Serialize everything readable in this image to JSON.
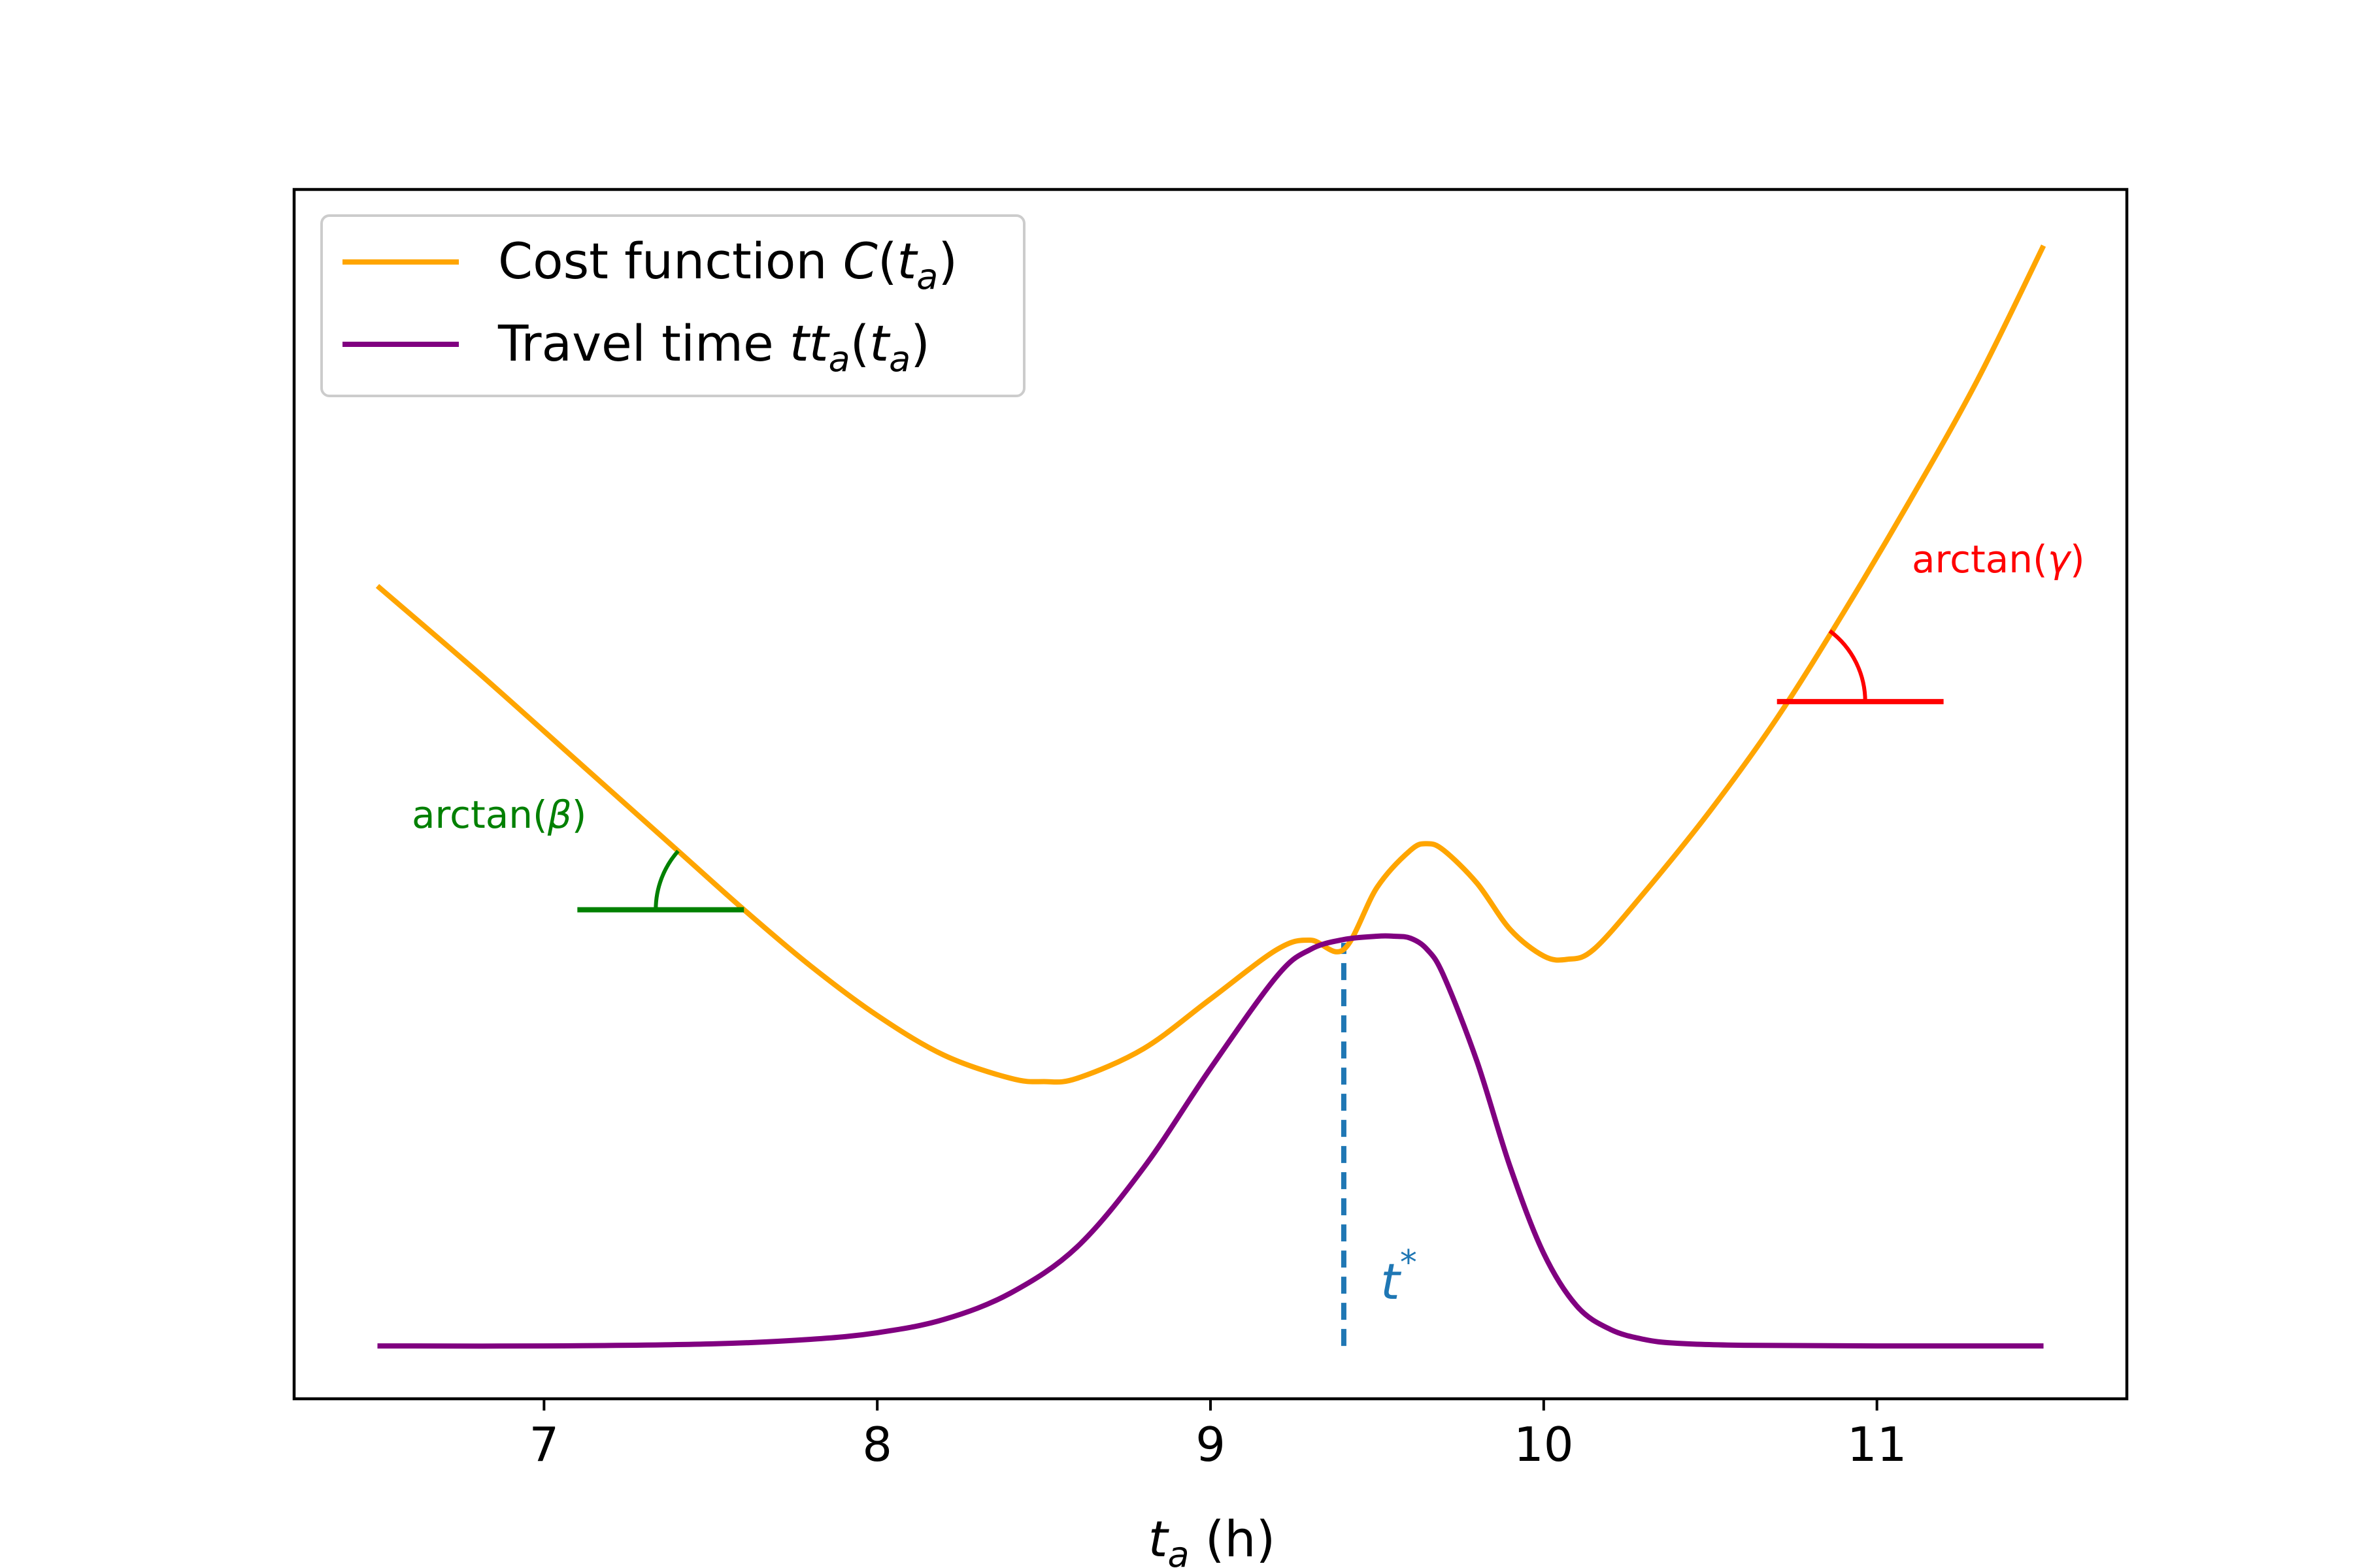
{
  "chart_data": {
    "type": "line",
    "title": "",
    "xlabel_main": "t",
    "xlabel_sub": "a",
    "xlabel_unit": " (h)",
    "ylabel": "",
    "xlim": [
      6.25,
      11.75
    ],
    "ylim": [
      -0.08,
      1.75
    ],
    "x_ticks": [
      7,
      8,
      9,
      10,
      11
    ],
    "x_tick_labels": [
      "7",
      "8",
      "9",
      "10",
      "11"
    ],
    "y_ticks": [],
    "grid": false,
    "legend_position": "top-left",
    "series": [
      {
        "name": "Cost function C(t_a)",
        "legend_text": "Cost function ",
        "legend_math": "C",
        "legend_sub": "a",
        "color": "#FFA500",
        "x": [
          6.5,
          6.8,
          7.1,
          7.4,
          7.6,
          7.8,
          8.0,
          8.2,
          8.4,
          8.5,
          8.6,
          8.8,
          9.0,
          9.2,
          9.3,
          9.4,
          9.5,
          9.6,
          9.65,
          9.7,
          9.8,
          9.9,
          10.0,
          10.07,
          10.15,
          10.3,
          10.5,
          10.7,
          10.9,
          11.1,
          11.3,
          11.5
        ],
        "values": [
          1.15,
          1.02,
          0.885,
          0.75,
          0.66,
          0.575,
          0.5,
          0.44,
          0.405,
          0.4,
          0.405,
          0.45,
          0.525,
          0.6,
          0.614,
          0.6,
          0.694,
          0.75,
          0.76,
          0.75,
          0.7,
          0.63,
          0.59,
          0.585,
          0.6,
          0.685,
          0.81,
          0.95,
          1.11,
          1.28,
          1.46,
          1.665
        ]
      },
      {
        "name": "Travel time tt_a(t_a)",
        "legend_text": "Travel time ",
        "legend_math": "tt",
        "legend_sub": "a",
        "color": "#800080",
        "x": [
          6.5,
          7.0,
          7.5,
          7.8,
          8.0,
          8.2,
          8.4,
          8.6,
          8.8,
          9.0,
          9.2,
          9.3,
          9.4,
          9.5,
          9.55,
          9.6,
          9.65,
          9.7,
          9.8,
          9.9,
          10.0,
          10.1,
          10.2,
          10.3,
          10.4,
          10.6,
          11.0,
          11.5
        ],
        "values": [
          0.0,
          0.0,
          0.003,
          0.01,
          0.02,
          0.04,
          0.08,
          0.15,
          0.27,
          0.42,
          0.56,
          0.6,
          0.615,
          0.62,
          0.62,
          0.617,
          0.6,
          0.56,
          0.43,
          0.27,
          0.14,
          0.06,
          0.025,
          0.01,
          0.004,
          0.001,
          0.0,
          0.0
        ]
      }
    ],
    "annotations": [
      {
        "name": "beta",
        "label_text": "arctan(",
        "label_greek": "β",
        "label_close": ")",
        "color": "#008000",
        "line_x": [
          7.1,
          7.6
        ],
        "line_y": 0.66
      },
      {
        "name": "gamma",
        "label_text": "arctan(",
        "label_greek": "γ",
        "label_close": ")",
        "color": "#FF0000",
        "line_x": [
          10.7,
          11.2
        ],
        "line_y": 0.975
      },
      {
        "name": "t-star",
        "label_main": "t",
        "label_sup": "*",
        "color": "#1F77B4",
        "x": 9.4,
        "y_from": 0.0,
        "y_to": 0.61
      }
    ]
  }
}
